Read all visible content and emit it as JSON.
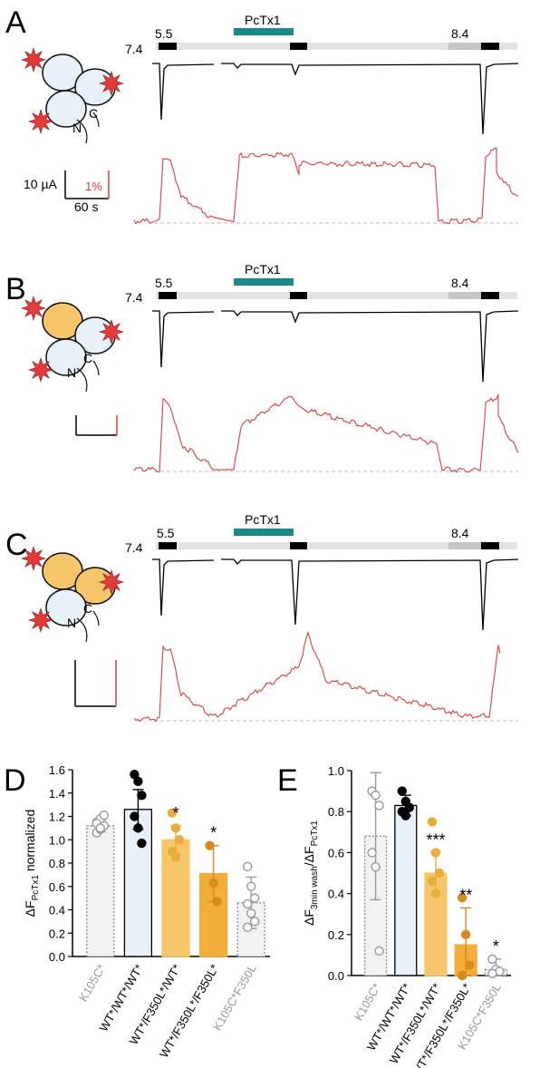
{
  "panels": [
    {
      "letter": "A",
      "ph_start": "5.5",
      "ph_baseline": "7.4",
      "ph_end": "8.4",
      "drug": "PcTx1",
      "scale_current": "10 µA",
      "scale_time": "60 s",
      "scale_fluor": "1%"
    },
    {
      "letter": "B",
      "ph_start": "5.5",
      "ph_baseline": "7.4",
      "ph_end": "8.4",
      "drug": "PcTx1"
    },
    {
      "letter": "C",
      "ph_start": "5.5",
      "ph_baseline": "7.4",
      "ph_end": "8.4",
      "drug": "PcTx1"
    }
  ],
  "cartoon": {
    "c_label": "C",
    "n_label": "N"
  },
  "colors": {
    "teal": "#1a8a86",
    "trace_red": "#d84040",
    "black": "#000000",
    "grey_text": "#9a9a9a",
    "light_blue": "#e8f0f8",
    "orange_light": "#f7c66a",
    "orange_dark": "#f3ad3a",
    "bar_grey": "#f2f2f2",
    "dot_orange_light": "#e8ad3c",
    "dot_orange_dark": "#d98a1c"
  },
  "chart_data": [
    {
      "panel": "D",
      "type": "bar",
      "ylabel": "ΔF",
      "ylabel_sub": "PcTx1",
      "ylabel_suffix": " normalized",
      "ylim": [
        0,
        1.6
      ],
      "yticks": [
        "0.0",
        "0.2",
        "0.4",
        "0.6",
        "0.8",
        "1.0",
        "1.2",
        "1.4",
        "1.6"
      ],
      "categories": [
        "K105C*",
        "WT*/WT*/WT*",
        "WT*/F350L*/WT*",
        "WT*/F350L*/F350L*",
        "K105C*F350L"
      ],
      "values": [
        1.12,
        1.26,
        1.0,
        0.71,
        0.46
      ],
      "errors": [
        0.05,
        0.17,
        0.12,
        0.24,
        0.22
      ],
      "significance": [
        "",
        "",
        "*",
        "*",
        ""
      ],
      "points": [
        [
          1.06,
          1.09,
          1.12,
          1.15,
          1.18,
          1.21,
          1.14,
          1.1
        ],
        [
          1.56,
          1.5,
          1.38,
          1.2,
          1.1,
          0.97
        ],
        [
          1.23,
          1.1,
          1.0,
          0.9,
          0.85
        ],
        [
          0.95,
          0.63,
          0.47
        ],
        [
          0.77,
          0.6,
          0.5,
          0.45,
          0.37,
          0.3,
          0.25
        ]
      ]
    },
    {
      "panel": "E",
      "type": "bar",
      "ylabel": "ΔF",
      "ylabel_sub": "3min wash",
      "ylabel_mid": "/ΔF",
      "ylabel_sub2": "PcTx1",
      "ylim": [
        0,
        1.0
      ],
      "yticks": [
        "0.0",
        "0.2",
        "0.4",
        "0.6",
        "0.8",
        "1.0"
      ],
      "categories": [
        "K105C*",
        "WT*/WT*/WT*",
        "WT*/F350L*/WT*",
        "WT*/F350L*/F350L*",
        "K105C*F350L"
      ],
      "values": [
        0.68,
        0.83,
        0.5,
        0.15,
        0.03
      ],
      "errors": [
        0.31,
        0.05,
        0.1,
        0.18,
        0.05
      ],
      "significance": [
        "",
        "",
        "***",
        "**",
        "*"
      ],
      "points": [
        [
          0.9,
          0.88,
          0.83,
          0.6,
          0.53,
          0.12
        ],
        [
          0.9,
          0.85,
          0.82,
          0.8,
          0.78
        ],
        [
          0.75,
          0.6,
          0.5,
          0.46,
          0.4
        ],
        [
          0.38,
          0.2,
          0.05,
          0.0
        ],
        [
          0.08,
          0.03,
          0.02,
          0.01
        ]
      ]
    }
  ]
}
